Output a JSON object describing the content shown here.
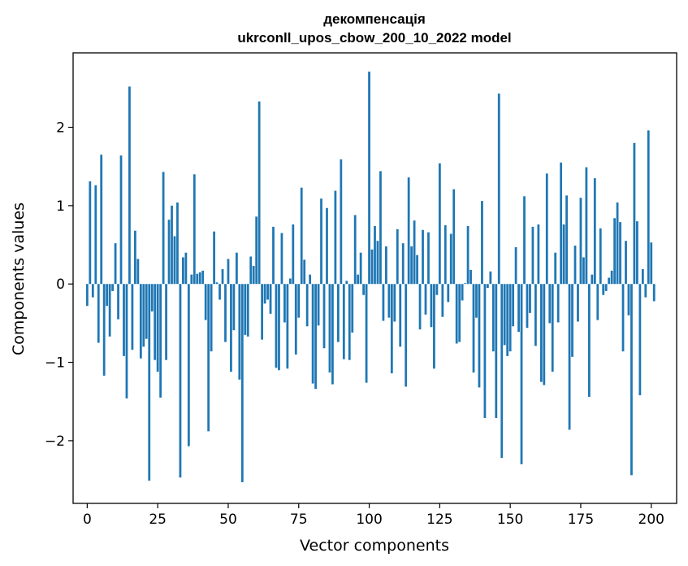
{
  "chart_data": {
    "type": "bar",
    "title": "декомпенсація",
    "subtitle": "ukrconll_upos_cbow_200_10_2022 model",
    "xlabel": "Vector components",
    "ylabel": "Components values",
    "xlim": [
      -5,
      209
    ],
    "ylim": [
      -2.8,
      2.95
    ],
    "xticks": [
      0,
      25,
      50,
      75,
      100,
      125,
      150,
      175,
      200
    ],
    "yticks": [
      -2,
      -1,
      0,
      1,
      2
    ],
    "ytick_labels": [
      "−2",
      "−1",
      "0",
      "1",
      "2"
    ],
    "grid": false,
    "bar_color": "#1f77b4",
    "values": [
      -0.28,
      1.31,
      -0.17,
      1.26,
      -0.75,
      1.65,
      -1.17,
      -0.28,
      -0.67,
      -0.09,
      0.52,
      -0.45,
      1.64,
      -0.92,
      -1.46,
      2.52,
      -0.84,
      0.68,
      0.32,
      -0.95,
      -0.8,
      -0.7,
      -2.51,
      -0.35,
      -0.97,
      -1.12,
      -1.45,
      1.43,
      -0.97,
      0.82,
      1.0,
      0.61,
      1.04,
      -2.47,
      0.34,
      0.4,
      -2.07,
      0.12,
      1.4,
      0.13,
      0.15,
      0.17,
      -0.46,
      -1.88,
      -0.86,
      0.67,
      0.02,
      -0.2,
      0.19,
      -0.74,
      0.32,
      -1.12,
      -0.59,
      0.4,
      -1.22,
      -2.53,
      -0.65,
      -0.67,
      0.35,
      0.23,
      0.86,
      2.33,
      -0.71,
      -0.25,
      -0.2,
      -0.38,
      0.73,
      -1.07,
      -1.1,
      0.65,
      -0.49,
      -1.08,
      0.07,
      0.76,
      -0.9,
      -0.43,
      1.23,
      0.31,
      -0.54,
      0.12,
      -1.27,
      -1.34,
      -0.53,
      1.09,
      -0.82,
      0.97,
      -1.13,
      -1.28,
      1.19,
      -0.74,
      1.59,
      -0.96,
      0.04,
      -0.97,
      -0.62,
      0.88,
      0.12,
      0.4,
      -0.14,
      -1.26,
      2.71,
      0.44,
      0.74,
      0.55,
      1.44,
      -0.47,
      0.48,
      -0.43,
      -1.14,
      -0.48,
      0.7,
      -0.8,
      0.52,
      -1.31,
      1.36,
      0.48,
      0.81,
      0.37,
      -0.58,
      0.69,
      -0.39,
      0.66,
      -0.55,
      -1.08,
      -0.14,
      1.54,
      -0.42,
      0.75,
      -0.23,
      0.64,
      1.21,
      -0.76,
      -0.74,
      -0.21,
      0.01,
      0.74,
      0.18,
      -1.13,
      -0.43,
      -1.32,
      1.06,
      -1.71,
      -0.05,
      0.16,
      -0.86,
      -1.71,
      2.43,
      -2.22,
      -0.78,
      -0.92,
      -0.86,
      -0.54,
      0.47,
      -0.61,
      -2.3,
      1.12,
      -0.56,
      -0.37,
      0.73,
      -0.79,
      0.76,
      -1.25,
      -1.29,
      1.41,
      -0.5,
      -1.12,
      0.4,
      -0.49,
      1.55,
      0.76,
      1.13,
      -1.86,
      -0.93,
      0.49,
      -0.48,
      1.1,
      0.34,
      1.49,
      -1.44,
      0.12,
      1.35,
      -0.46,
      0.71,
      -0.14,
      -0.09,
      0.08,
      0.17,
      0.84,
      1.04,
      0.79,
      -0.86,
      0.55,
      -0.4,
      -2.44,
      1.8,
      0.8,
      -1.42,
      0.19,
      -0.17,
      1.96,
      0.53,
      -0.22
    ]
  }
}
